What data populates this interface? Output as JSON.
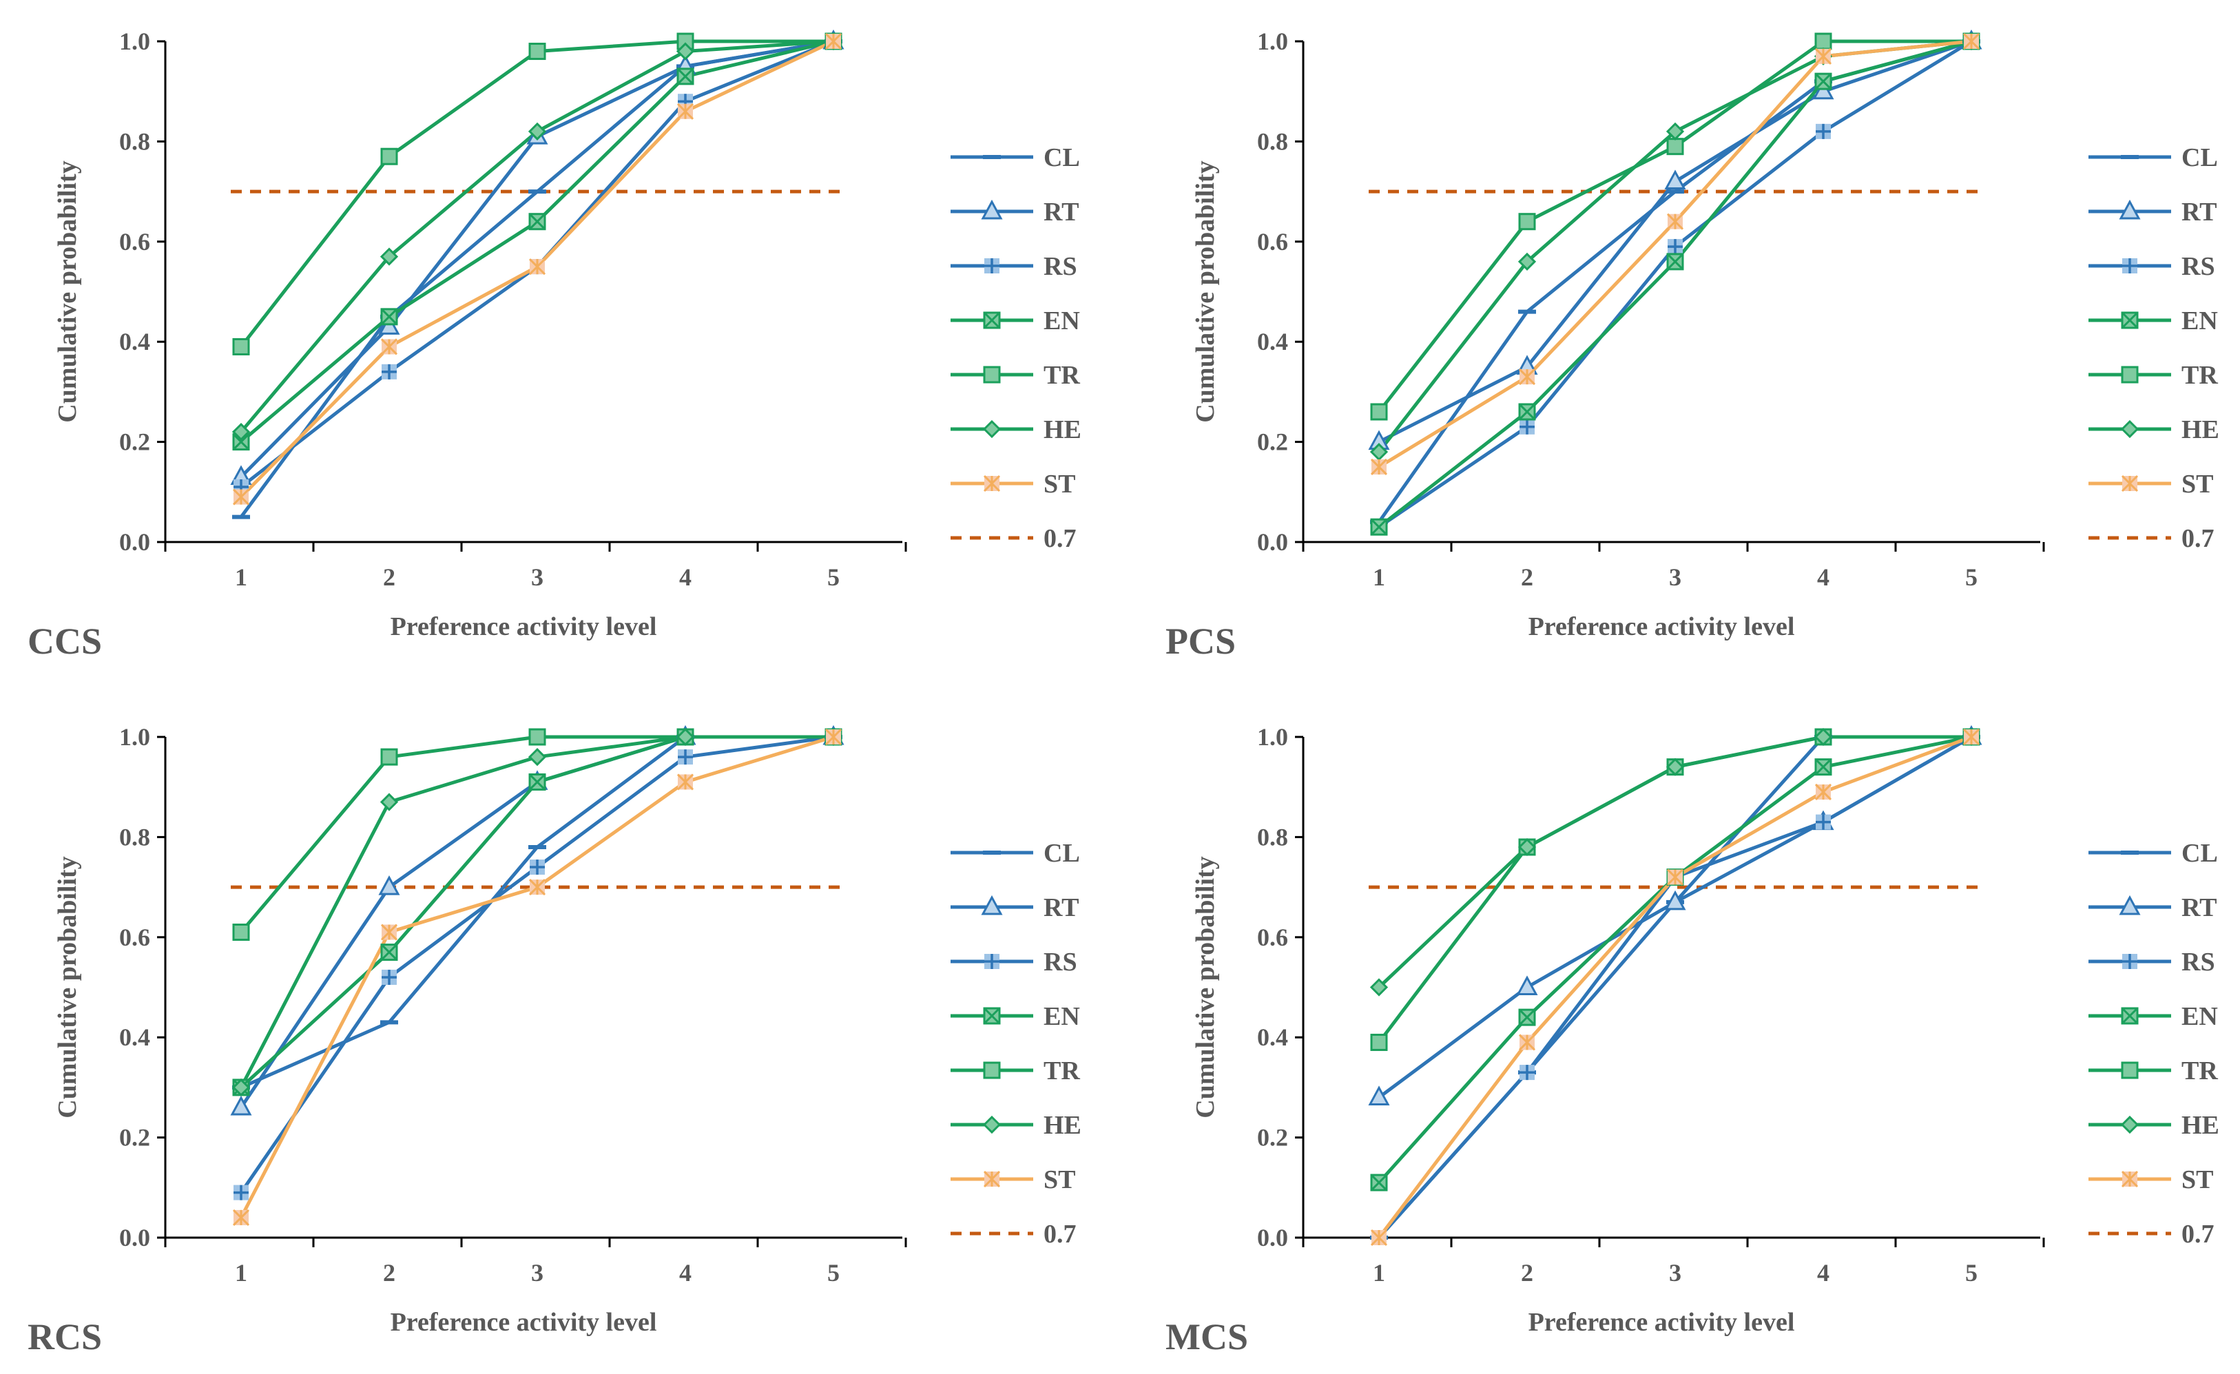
{
  "colors": {
    "CL": "#2E75B6",
    "RT": "#2E75B6",
    "RS": "#2E75B6",
    "EN": "#1BA05C",
    "TR": "#1BA05C",
    "HE": "#1BA05C",
    "ST": "#F4AE5C",
    "threshold": "#C55A11",
    "text": "#595959",
    "axis": "#000000"
  },
  "chart_data": [
    {
      "type": "line",
      "panel": "CCS",
      "xlabel": "Preference activity level",
      "ylabel": "Cumulative probability",
      "x": [
        1,
        2,
        3,
        4,
        5
      ],
      "x_tick_labels": [
        "1",
        "2",
        "3",
        "4",
        "5"
      ],
      "y_tick_labels": [
        "0.0",
        "0.2",
        "0.4",
        "0.6",
        "0.8",
        "1.0"
      ],
      "ylim": [
        0,
        1
      ],
      "legend_position": "right",
      "series": [
        {
          "name": "CL",
          "marker": "dash",
          "values": [
            0.05,
            0.45,
            0.7,
            0.95,
            1.0
          ]
        },
        {
          "name": "RT",
          "marker": "triangle",
          "values": [
            0.13,
            0.43,
            0.81,
            0.95,
            1.0
          ]
        },
        {
          "name": "RS",
          "marker": "plus",
          "values": [
            0.11,
            0.34,
            0.55,
            0.88,
            1.0
          ]
        },
        {
          "name": "EN",
          "marker": "xbox",
          "values": [
            0.2,
            0.45,
            0.64,
            0.93,
            1.0
          ]
        },
        {
          "name": "TR",
          "marker": "square",
          "values": [
            0.39,
            0.77,
            0.98,
            1.0,
            1.0
          ]
        },
        {
          "name": "HE",
          "marker": "diamond",
          "values": [
            0.22,
            0.57,
            0.82,
            0.98,
            1.0
          ]
        },
        {
          "name": "ST",
          "marker": "star",
          "values": [
            0.09,
            0.39,
            0.55,
            0.86,
            1.0
          ]
        }
      ],
      "threshold": {
        "name": "0.7",
        "value": 0.7
      }
    },
    {
      "type": "line",
      "panel": "PCS",
      "xlabel": "Preference activity level",
      "ylabel": "Cumulative probability",
      "x": [
        1,
        2,
        3,
        4,
        5
      ],
      "x_tick_labels": [
        "1",
        "2",
        "3",
        "4",
        "5"
      ],
      "y_tick_labels": [
        "0.0",
        "0.2",
        "0.4",
        "0.6",
        "0.8",
        "1.0"
      ],
      "ylim": [
        0,
        1
      ],
      "legend_position": "right",
      "series": [
        {
          "name": "CL",
          "marker": "dash",
          "values": [
            0.04,
            0.46,
            0.7,
            0.92,
            1.0
          ]
        },
        {
          "name": "RT",
          "marker": "triangle",
          "values": [
            0.2,
            0.35,
            0.72,
            0.9,
            1.0
          ]
        },
        {
          "name": "RS",
          "marker": "plus",
          "values": [
            0.03,
            0.23,
            0.59,
            0.82,
            1.0
          ]
        },
        {
          "name": "EN",
          "marker": "xbox",
          "values": [
            0.03,
            0.26,
            0.56,
            0.92,
            1.0
          ]
        },
        {
          "name": "TR",
          "marker": "square",
          "values": [
            0.26,
            0.64,
            0.79,
            1.0,
            1.0
          ]
        },
        {
          "name": "HE",
          "marker": "diamond",
          "values": [
            0.18,
            0.56,
            0.82,
            0.97,
            1.0
          ]
        },
        {
          "name": "ST",
          "marker": "star",
          "values": [
            0.15,
            0.33,
            0.64,
            0.97,
            1.0
          ]
        }
      ],
      "threshold": {
        "name": "0.7",
        "value": 0.7
      }
    },
    {
      "type": "line",
      "panel": "RCS",
      "xlabel": "Preference activity level",
      "ylabel": "Cumulative probability",
      "x": [
        1,
        2,
        3,
        4,
        5
      ],
      "x_tick_labels": [
        "1",
        "2",
        "3",
        "4",
        "5"
      ],
      "y_tick_labels": [
        "0.0",
        "0.2",
        "0.4",
        "0.6",
        "0.8",
        "1.0"
      ],
      "ylim": [
        0,
        1
      ],
      "legend_position": "right",
      "series": [
        {
          "name": "CL",
          "marker": "dash",
          "values": [
            0.3,
            0.43,
            0.78,
            1.0,
            1.0
          ]
        },
        {
          "name": "RT",
          "marker": "triangle",
          "values": [
            0.26,
            0.7,
            0.91,
            1.0,
            1.0
          ]
        },
        {
          "name": "RS",
          "marker": "plus",
          "values": [
            0.09,
            0.52,
            0.74,
            0.96,
            1.0
          ]
        },
        {
          "name": "EN",
          "marker": "xbox",
          "values": [
            0.3,
            0.57,
            0.91,
            1.0,
            1.0
          ]
        },
        {
          "name": "TR",
          "marker": "square",
          "values": [
            0.61,
            0.96,
            1.0,
            1.0,
            1.0
          ]
        },
        {
          "name": "HE",
          "marker": "diamond",
          "values": [
            0.3,
            0.87,
            0.96,
            1.0,
            1.0
          ]
        },
        {
          "name": "ST",
          "marker": "star",
          "values": [
            0.04,
            0.61,
            0.7,
            0.91,
            1.0
          ]
        }
      ],
      "threshold": {
        "name": "0.7",
        "value": 0.7
      }
    },
    {
      "type": "line",
      "panel": "MCS",
      "xlabel": "Preference activity level",
      "ylabel": "Cumulative probability",
      "x": [
        1,
        2,
        3,
        4,
        5
      ],
      "x_tick_labels": [
        "1",
        "2",
        "3",
        "4",
        "5"
      ],
      "y_tick_labels": [
        "0.0",
        "0.2",
        "0.4",
        "0.6",
        "0.8",
        "1.0"
      ],
      "ylim": [
        0,
        1
      ],
      "legend_position": "right",
      "series": [
        {
          "name": "CL",
          "marker": "dash",
          "values": [
            0.0,
            0.33,
            0.67,
            1.0,
            1.0
          ]
        },
        {
          "name": "RT",
          "marker": "triangle",
          "values": [
            0.28,
            0.5,
            0.67,
            0.83,
            1.0
          ]
        },
        {
          "name": "RS",
          "marker": "plus",
          "values": [
            0.0,
            0.33,
            0.72,
            0.83,
            1.0
          ]
        },
        {
          "name": "EN",
          "marker": "xbox",
          "values": [
            0.11,
            0.44,
            0.72,
            0.94,
            1.0
          ]
        },
        {
          "name": "TR",
          "marker": "square",
          "values": [
            0.39,
            0.78,
            0.94,
            1.0,
            1.0
          ]
        },
        {
          "name": "HE",
          "marker": "diamond",
          "values": [
            0.5,
            0.78,
            0.94,
            1.0,
            1.0
          ]
        },
        {
          "name": "ST",
          "marker": "star",
          "values": [
            0.0,
            0.39,
            0.72,
            0.89,
            1.0
          ]
        }
      ],
      "threshold": {
        "name": "0.7",
        "value": 0.7
      }
    }
  ]
}
